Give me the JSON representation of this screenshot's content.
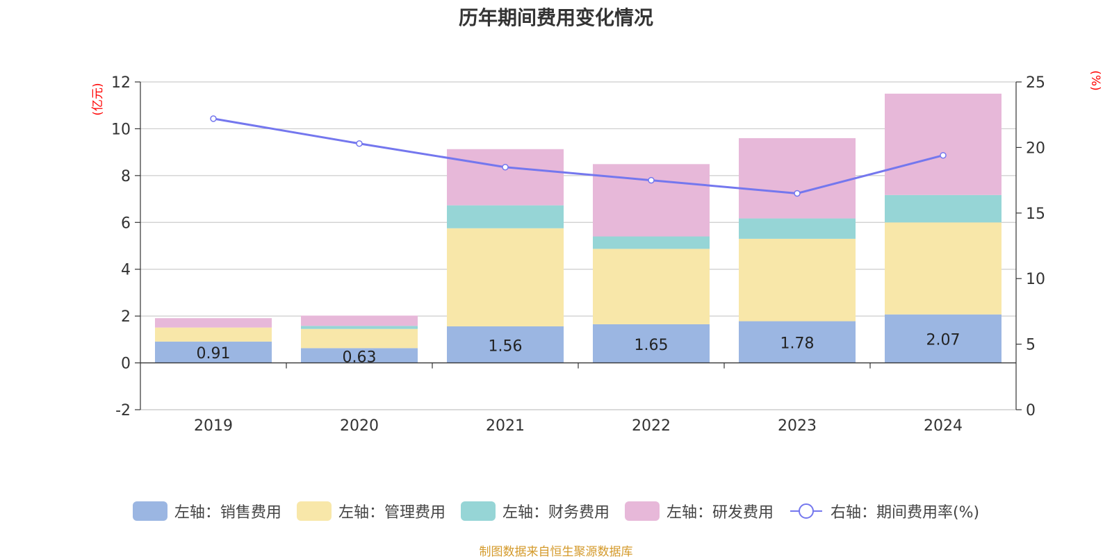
{
  "chart_data": {
    "type": "bar",
    "title": "历年期间费用变化情况",
    "categories": [
      "2019",
      "2020",
      "2021",
      "2022",
      "2023",
      "2024"
    ],
    "series": [
      {
        "name": "左轴：销售费用",
        "axis": "left",
        "color": "#9bb6e2",
        "values": [
          0.91,
          0.63,
          1.56,
          1.65,
          1.78,
          2.07
        ],
        "labels": [
          "0.91",
          "0.63",
          "1.56",
          "1.65",
          "1.78",
          "2.07"
        ]
      },
      {
        "name": "左轴：管理费用",
        "axis": "left",
        "color": "#f8e7a9",
        "values": [
          0.6,
          0.82,
          4.19,
          3.22,
          3.52,
          3.93
        ]
      },
      {
        "name": "左轴：财务费用",
        "axis": "left",
        "color": "#96d5d6",
        "values": [
          0.0,
          0.13,
          0.98,
          0.53,
          0.87,
          1.17
        ]
      },
      {
        "name": "左轴：研发费用",
        "axis": "left",
        "color": "#e7b8d9",
        "values": [
          0.4,
          0.44,
          2.4,
          3.09,
          3.43,
          4.33
        ]
      },
      {
        "name": "右轴：期间费用率(%)",
        "axis": "right",
        "type": "line",
        "color": "#7477ee",
        "values": [
          22.2,
          20.3,
          18.5,
          17.5,
          16.5,
          19.4
        ]
      }
    ],
    "y_left": {
      "unit": "(亿元)",
      "ylim": [
        -2,
        12
      ],
      "ticks": [
        "-2",
        "0",
        "2",
        "4",
        "6",
        "8",
        "10",
        "12"
      ]
    },
    "y_right": {
      "unit": "(%)",
      "ylim": [
        0,
        25
      ],
      "ticks": [
        "0",
        "5",
        "10",
        "15",
        "20",
        "25"
      ]
    },
    "grid": true,
    "legend_position": "bottom"
  },
  "footer": {
    "source": "制图数据来自恒生聚源数据库"
  }
}
